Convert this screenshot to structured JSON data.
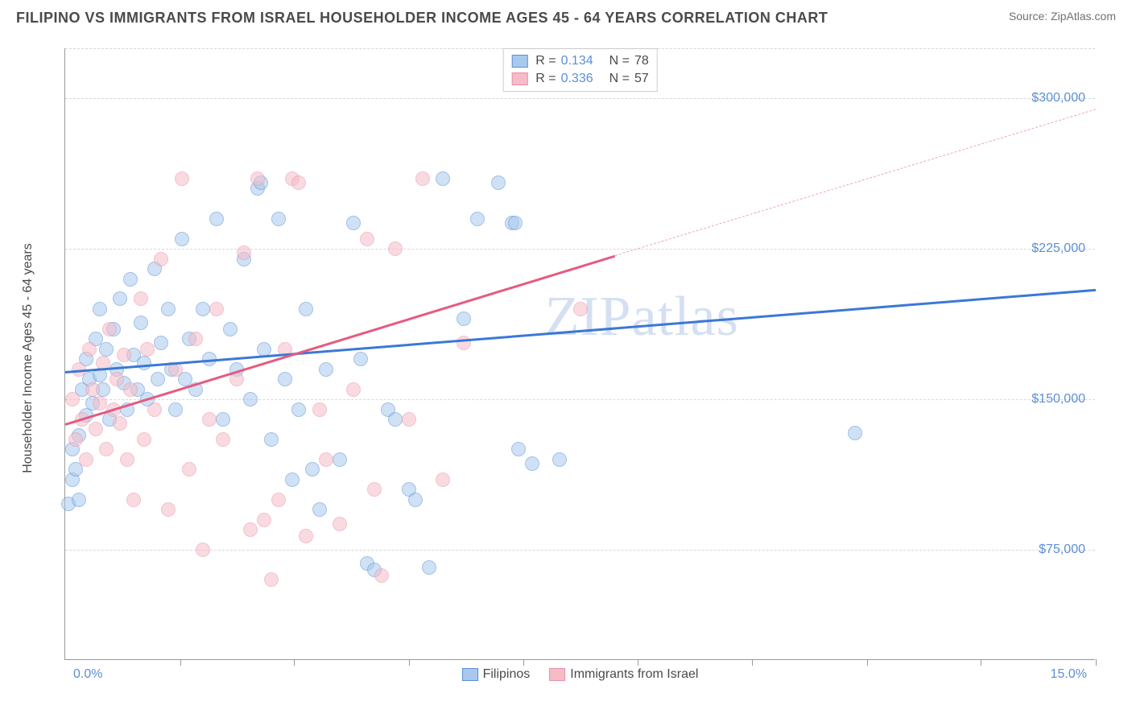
{
  "title": "FILIPINO VS IMMIGRANTS FROM ISRAEL HOUSEHOLDER INCOME AGES 45 - 64 YEARS CORRELATION CHART",
  "source": "Source: ZipAtlas.com",
  "watermark": "ZIPatlas",
  "chart": {
    "type": "scatter",
    "ylabel": "Householder Income Ages 45 - 64 years",
    "xlim": [
      0,
      15
    ],
    "ylim": [
      20000,
      325000
    ],
    "xaxis_min_label": "0.0%",
    "xaxis_max_label": "15.0%",
    "yticks": [
      75000,
      150000,
      225000,
      300000
    ],
    "ytick_labels": [
      "$75,000",
      "$150,000",
      "$225,000",
      "$300,000"
    ],
    "xticks": [
      1.67,
      3.33,
      5.0,
      6.67,
      8.33,
      10.0,
      11.67,
      13.33,
      15.0
    ],
    "grid_color": "#d8d8d8",
    "background_color": "#ffffff",
    "axis_color": "#999999",
    "marker_radius": 9,
    "marker_opacity": 0.55,
    "series": [
      {
        "name": "Filipinos",
        "color_fill": "#a8c9ed",
        "color_border": "#5b8fd6",
        "R": "0.134",
        "N": "78",
        "trend": {
          "x1": 0,
          "y1": 164000,
          "x2": 15,
          "y2": 205000,
          "color": "#3b78d6",
          "width": 2.5
        },
        "points": [
          [
            0.05,
            98000
          ],
          [
            0.1,
            110000
          ],
          [
            0.1,
            125000
          ],
          [
            0.15,
            115000
          ],
          [
            0.2,
            132000
          ],
          [
            0.2,
            100000
          ],
          [
            0.25,
            155000
          ],
          [
            0.3,
            142000
          ],
          [
            0.3,
            170000
          ],
          [
            0.35,
            160000
          ],
          [
            0.4,
            148000
          ],
          [
            0.45,
            180000
          ],
          [
            0.5,
            162000
          ],
          [
            0.5,
            195000
          ],
          [
            0.55,
            155000
          ],
          [
            0.6,
            175000
          ],
          [
            0.65,
            140000
          ],
          [
            0.7,
            185000
          ],
          [
            0.75,
            165000
          ],
          [
            0.8,
            200000
          ],
          [
            0.85,
            158000
          ],
          [
            0.9,
            145000
          ],
          [
            0.95,
            210000
          ],
          [
            1.0,
            172000
          ],
          [
            1.05,
            155000
          ],
          [
            1.1,
            188000
          ],
          [
            1.15,
            168000
          ],
          [
            1.2,
            150000
          ],
          [
            1.3,
            215000
          ],
          [
            1.35,
            160000
          ],
          [
            1.4,
            178000
          ],
          [
            1.5,
            195000
          ],
          [
            1.55,
            165000
          ],
          [
            1.6,
            145000
          ],
          [
            1.7,
            230000
          ],
          [
            1.75,
            160000
          ],
          [
            1.8,
            180000
          ],
          [
            1.9,
            155000
          ],
          [
            2.0,
            195000
          ],
          [
            2.1,
            170000
          ],
          [
            2.2,
            240000
          ],
          [
            2.3,
            140000
          ],
          [
            2.4,
            185000
          ],
          [
            2.5,
            165000
          ],
          [
            2.6,
            220000
          ],
          [
            2.7,
            150000
          ],
          [
            2.8,
            255000
          ],
          [
            2.85,
            258000
          ],
          [
            2.9,
            175000
          ],
          [
            3.0,
            130000
          ],
          [
            3.1,
            240000
          ],
          [
            3.2,
            160000
          ],
          [
            3.3,
            110000
          ],
          [
            3.4,
            145000
          ],
          [
            3.5,
            195000
          ],
          [
            3.6,
            115000
          ],
          [
            3.7,
            95000
          ],
          [
            3.8,
            165000
          ],
          [
            4.0,
            120000
          ],
          [
            4.2,
            238000
          ],
          [
            4.3,
            170000
          ],
          [
            4.4,
            68000
          ],
          [
            4.5,
            65000
          ],
          [
            4.7,
            145000
          ],
          [
            4.8,
            140000
          ],
          [
            5.0,
            105000
          ],
          [
            5.1,
            100000
          ],
          [
            5.3,
            66000
          ],
          [
            5.5,
            260000
          ],
          [
            5.8,
            190000
          ],
          [
            6.0,
            240000
          ],
          [
            6.3,
            258000
          ],
          [
            6.5,
            238000
          ],
          [
            6.55,
            238000
          ],
          [
            6.6,
            125000
          ],
          [
            6.8,
            118000
          ],
          [
            7.2,
            120000
          ],
          [
            11.5,
            133000
          ]
        ]
      },
      {
        "name": "Immigrants from Israel",
        "color_fill": "#f5bcc8",
        "color_border": "#ea92a8",
        "R": "0.336",
        "N": "57",
        "trend": {
          "x1": 0,
          "y1": 138000,
          "x2": 8,
          "y2": 222000,
          "color": "#e65a7f",
          "width": 2.5,
          "dash_x2": 15,
          "dash_y2": 295000,
          "dash_color": "#f2a3b8"
        },
        "points": [
          [
            0.1,
            150000
          ],
          [
            0.15,
            130000
          ],
          [
            0.2,
            165000
          ],
          [
            0.25,
            140000
          ],
          [
            0.3,
            120000
          ],
          [
            0.35,
            175000
          ],
          [
            0.4,
            155000
          ],
          [
            0.45,
            135000
          ],
          [
            0.5,
            148000
          ],
          [
            0.55,
            168000
          ],
          [
            0.6,
            125000
          ],
          [
            0.65,
            185000
          ],
          [
            0.7,
            145000
          ],
          [
            0.75,
            160000
          ],
          [
            0.8,
            138000
          ],
          [
            0.85,
            172000
          ],
          [
            0.9,
            120000
          ],
          [
            0.95,
            155000
          ],
          [
            1.0,
            100000
          ],
          [
            1.1,
            200000
          ],
          [
            1.15,
            130000
          ],
          [
            1.2,
            175000
          ],
          [
            1.3,
            145000
          ],
          [
            1.4,
            220000
          ],
          [
            1.5,
            95000
          ],
          [
            1.6,
            165000
          ],
          [
            1.7,
            260000
          ],
          [
            1.8,
            115000
          ],
          [
            1.9,
            180000
          ],
          [
            2.0,
            75000
          ],
          [
            2.1,
            140000
          ],
          [
            2.2,
            195000
          ],
          [
            2.3,
            130000
          ],
          [
            2.5,
            160000
          ],
          [
            2.6,
            223000
          ],
          [
            2.7,
            85000
          ],
          [
            2.8,
            260000
          ],
          [
            2.9,
            90000
          ],
          [
            3.0,
            60000
          ],
          [
            3.1,
            100000
          ],
          [
            3.2,
            175000
          ],
          [
            3.3,
            260000
          ],
          [
            3.4,
            258000
          ],
          [
            3.5,
            82000
          ],
          [
            3.7,
            145000
          ],
          [
            3.8,
            120000
          ],
          [
            4.0,
            88000
          ],
          [
            4.2,
            155000
          ],
          [
            4.4,
            230000
          ],
          [
            4.5,
            105000
          ],
          [
            4.6,
            62000
          ],
          [
            4.8,
            225000
          ],
          [
            5.0,
            140000
          ],
          [
            5.2,
            260000
          ],
          [
            5.5,
            110000
          ],
          [
            5.8,
            178000
          ],
          [
            7.5,
            195000
          ]
        ]
      }
    ]
  },
  "legend_bottom": [
    {
      "label": "Filipinos",
      "fill": "#a8c9ed",
      "border": "#5b8fd6"
    },
    {
      "label": "Immigrants from Israel",
      "fill": "#f5bcc8",
      "border": "#ea92a8"
    }
  ],
  "colors": {
    "title": "#4a4a4a",
    "source": "#707070",
    "axis_label": "#5b8fd6",
    "watermark": "#d4e0f2"
  },
  "fonts": {
    "title_size": 18,
    "label_size": 16,
    "watermark_size": 70
  }
}
